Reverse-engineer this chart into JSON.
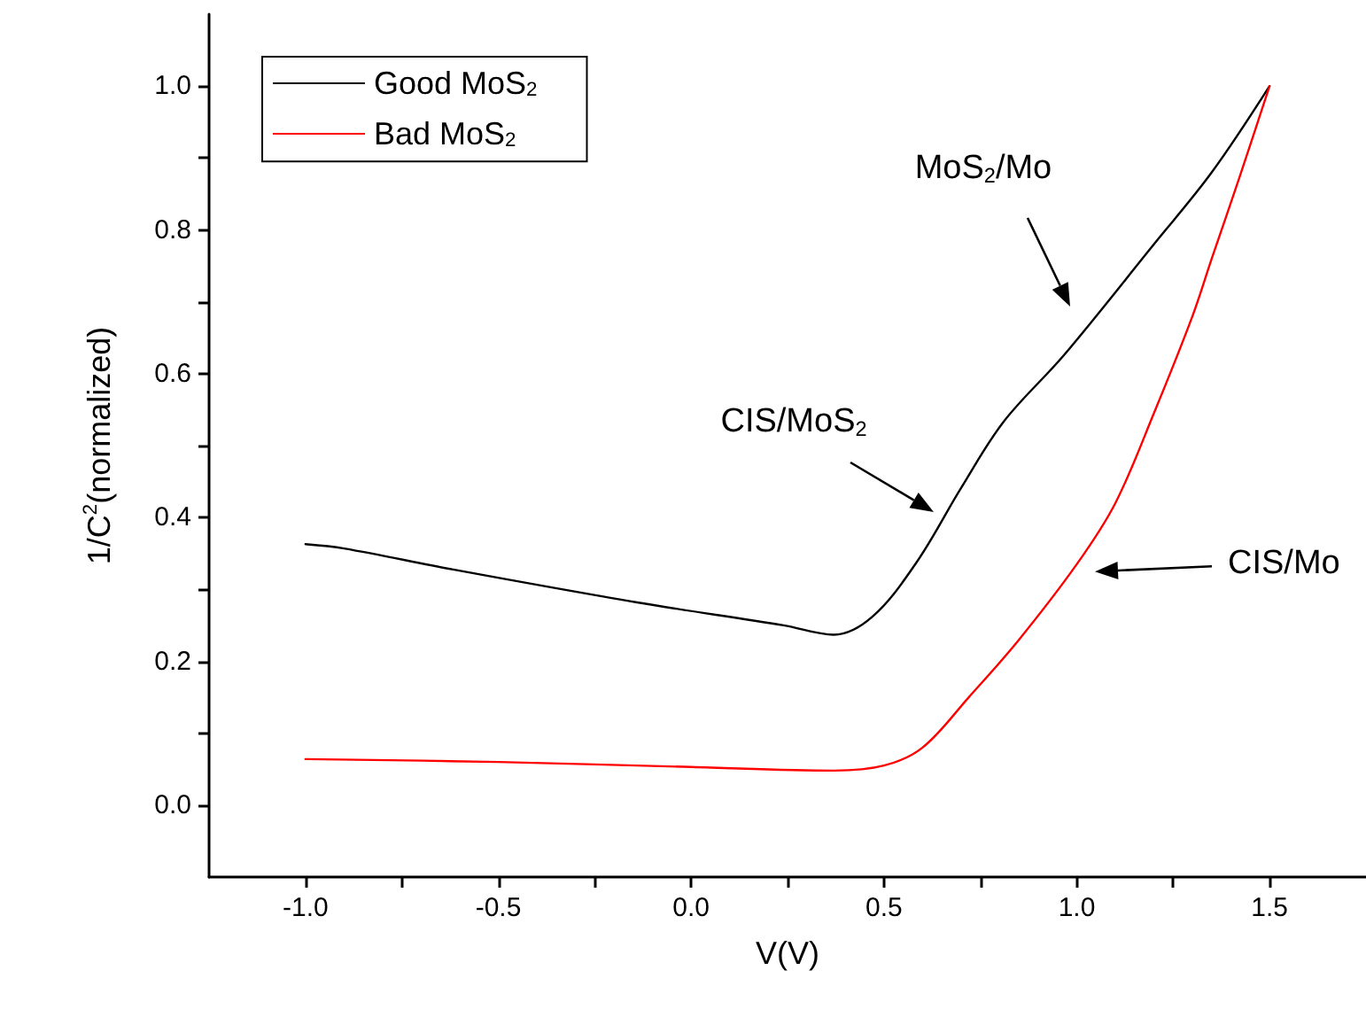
{
  "chart_data": {
    "type": "line",
    "xlabel": "V(V)",
    "ylabel": "1/C$^{2}$(normalized)",
    "xlim": [
      -1.25,
      1.75
    ],
    "ylim": [
      -0.1,
      1.1
    ],
    "xticks": [
      {
        "value": -1.0,
        "label": "-1.0"
      },
      {
        "value": -0.75,
        "label": null
      },
      {
        "value": -0.5,
        "label": "-0.5"
      },
      {
        "value": -0.25,
        "label": null
      },
      {
        "value": 0,
        "label": "0.0"
      },
      {
        "value": 0.25,
        "label": null
      },
      {
        "value": 0.5,
        "label": "0.5"
      },
      {
        "value": 0.75,
        "label": null
      },
      {
        "value": 1.0,
        "label": "1.0"
      },
      {
        "value": 1.25,
        "label": null
      },
      {
        "value": 1.5,
        "label": "1.5"
      }
    ],
    "yticks": [
      {
        "value": 0,
        "label": "0.0"
      },
      {
        "value": 0.1,
        "label": null
      },
      {
        "value": 0.2,
        "label": "0.2"
      },
      {
        "value": 0.3,
        "label": null
      },
      {
        "value": 0.4,
        "label": "0.4"
      },
      {
        "value": 0.5,
        "label": null
      },
      {
        "value": 0.6,
        "label": "0.6"
      },
      {
        "value": 0.7,
        "label": null
      },
      {
        "value": 0.8,
        "label": "0.8"
      },
      {
        "value": 0.9,
        "label": null
      },
      {
        "value": 1.0,
        "label": "1.0"
      }
    ],
    "grid": false,
    "legend": "top left",
    "marker": "none",
    "line_style": "solid",
    "series": [
      {
        "name": "Good MoS$_{2}$",
        "color": "#000000",
        "x": [
          -1.0,
          -0.9,
          -0.62,
          -0.14,
          0.24,
          0.37,
          0.47,
          0.585,
          0.7,
          0.81,
          0.967,
          1.2,
          1.35,
          1.5
        ],
        "values": [
          0.363,
          0.357,
          0.328,
          0.282,
          0.25,
          0.237,
          0.262,
          0.338,
          0.441,
          0.533,
          0.626,
          0.78,
          0.88,
          1.0
        ]
      },
      {
        "name": "Bad MoS$_{2}$",
        "color": "#ff0000",
        "x": [
          -1.0,
          -0.5,
          0.0,
          0.37,
          0.5,
          0.6,
          0.72,
          0.85,
          1.0,
          1.1,
          1.2,
          1.3,
          1.35,
          1.42,
          1.5
        ],
        "values": [
          0.064,
          0.06,
          0.053,
          0.048,
          0.055,
          0.08,
          0.15,
          0.23,
          0.335,
          0.42,
          0.545,
          0.68,
          0.76,
          0.87,
          1.0
        ]
      }
    ],
    "annotations": [
      "MoS$_{2}$/Mo",
      "CIS/MoS$_{2}$",
      "CIS/Mo"
    ]
  }
}
